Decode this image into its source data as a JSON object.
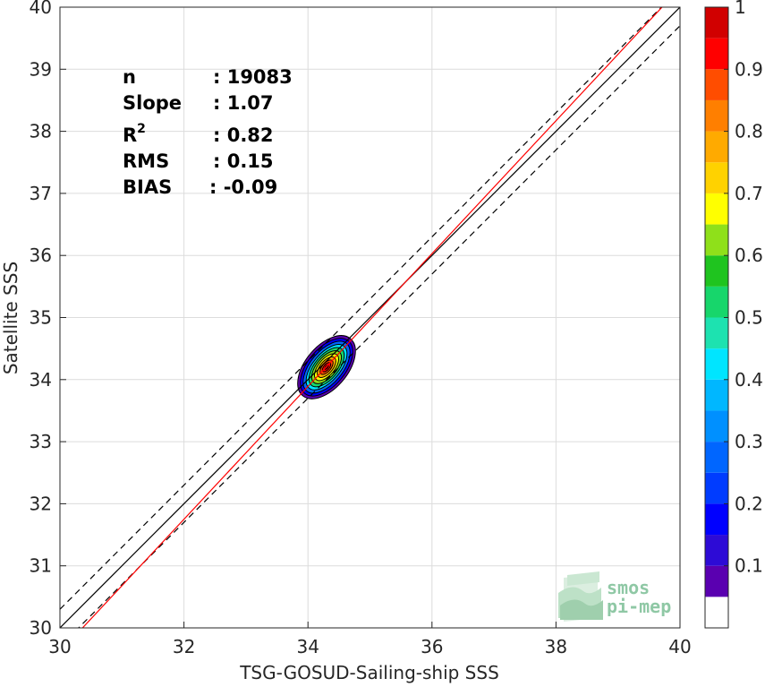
{
  "chart_data": {
    "type": "heatmap",
    "title": "",
    "xlabel": "TSG-GOSUD-Sailing-ship SSS",
    "ylabel": "Satellite SSS",
    "xlim": [
      30,
      40
    ],
    "ylim": [
      30,
      40
    ],
    "xticks": [
      "30",
      "32",
      "34",
      "36",
      "38",
      "40"
    ],
    "yticks": [
      "30",
      "31",
      "32",
      "33",
      "34",
      "35",
      "36",
      "37",
      "38",
      "39",
      "40"
    ],
    "grid": true,
    "density_peak": {
      "x": 34.3,
      "y": 34.2
    },
    "lines": [
      {
        "name": "1:1",
        "style": "solid",
        "color": "#000000",
        "slope": 1.0,
        "intercept": 0.0
      },
      {
        "name": "upper bound",
        "style": "dashed",
        "color": "#000000",
        "slope": 1.0,
        "intercept": 0.3
      },
      {
        "name": "lower bound",
        "style": "dashed",
        "color": "#000000",
        "slope": 1.0,
        "intercept": -0.3
      },
      {
        "name": "regression",
        "style": "solid",
        "color": "#ff0000",
        "slope": 1.07,
        "intercept": -2.49
      }
    ],
    "stats": [
      {
        "label": "n",
        "value": ": 19083"
      },
      {
        "label": "Slope",
        "value": ": 1.07"
      },
      {
        "label": "R",
        "sup": "2",
        "value": ": 0.82"
      },
      {
        "label": "RMS",
        "value": ": 0.15"
      },
      {
        "label": "BIAS",
        "value": ": -0.09"
      }
    ],
    "colorbar": {
      "range": [
        0,
        1
      ],
      "ticks": [
        "0.1",
        "0.2",
        "0.3",
        "0.4",
        "0.5",
        "0.6",
        "0.7",
        "0.8",
        "0.9",
        "1"
      ],
      "colors": [
        "#ffffff",
        "#5a00b0",
        "#2d0bd6",
        "#0000ff",
        "#003cff",
        "#0066ff",
        "#0090ff",
        "#00b7ff",
        "#00e5ff",
        "#1de2b0",
        "#17d66b",
        "#1fc41f",
        "#8fe01a",
        "#ffff00",
        "#ffd200",
        "#ffaa00",
        "#ff7f00",
        "#ff4d00",
        "#ff0000",
        "#d10000",
        "#8b0000"
      ]
    }
  },
  "logo": {
    "line1": "smos",
    "line2": "pi-mep"
  }
}
